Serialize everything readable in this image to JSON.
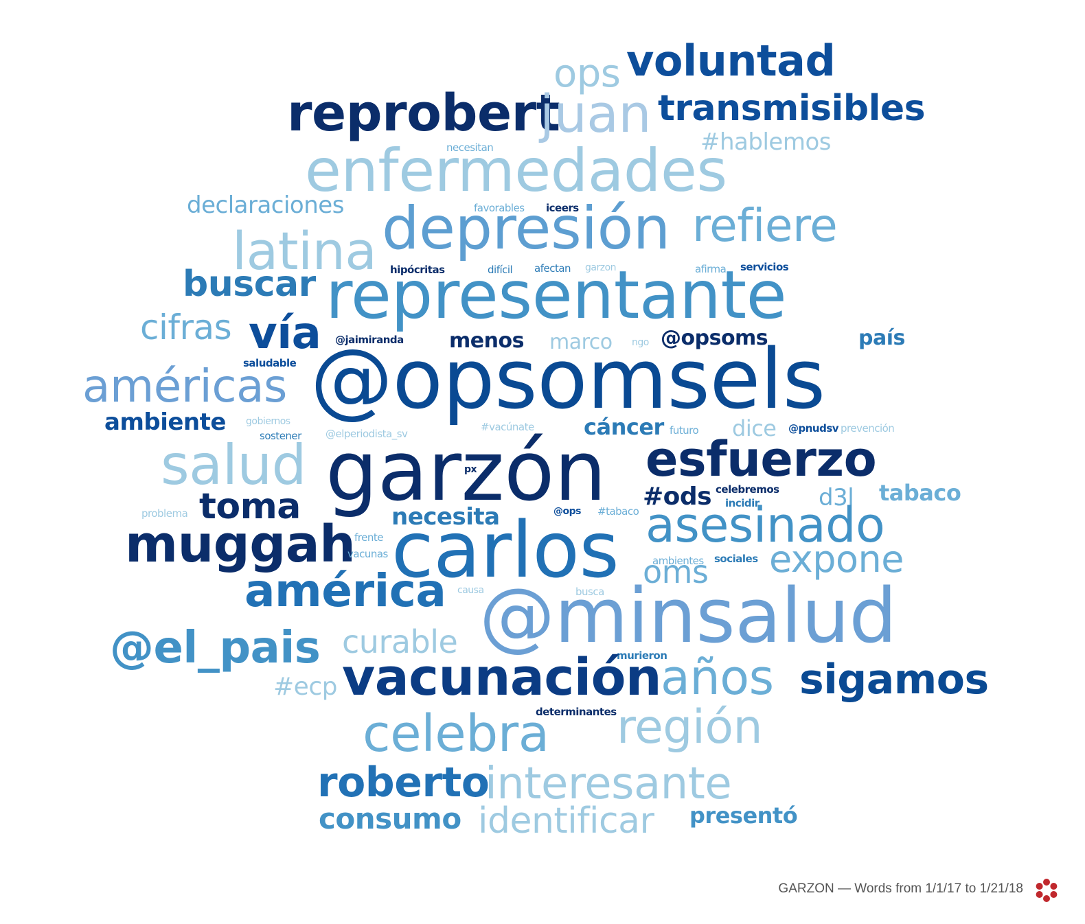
{
  "caption": "GARZON — Words from 1/1/17 to 1/21/18",
  "colors": {
    "navy": "#0b2d6a",
    "dark": "#0a4a93",
    "mid": "#2c7bb6",
    "light": "#6baed6",
    "pale": "#9ecae1"
  },
  "words": [
    {
      "text": "voluntad",
      "size": 62,
      "color": "#0d4e9b"
    },
    {
      "text": "ops",
      "size": 56,
      "color": "#9ecae1"
    },
    {
      "text": "reprobert",
      "size": 74,
      "color": "#0b2d6a"
    },
    {
      "text": "juan",
      "size": 76,
      "color": "#a9c9e4"
    },
    {
      "text": "transmisibles",
      "size": 52,
      "color": "#0d4e9b"
    },
    {
      "text": "#hablemos",
      "size": 34,
      "color": "#9ecae1"
    },
    {
      "text": "necesitan",
      "size": 15,
      "color": "#6baed6"
    },
    {
      "text": "enfermedades",
      "size": 86,
      "color": "#9ecae1"
    },
    {
      "text": "declaraciones",
      "size": 34,
      "color": "#6baed6"
    },
    {
      "text": "favorables",
      "size": 15,
      "color": "#6baed6"
    },
    {
      "text": "iceers",
      "size": 15,
      "color": "#0b2d6a"
    },
    {
      "text": "depresión",
      "size": 86,
      "color": "#5d9ed1"
    },
    {
      "text": "refiere",
      "size": 66,
      "color": "#6baed6"
    },
    {
      "text": "latina",
      "size": 76,
      "color": "#9ecae1"
    },
    {
      "text": "hipócritas",
      "size": 15,
      "color": "#0b2d6a"
    },
    {
      "text": "difícil",
      "size": 15,
      "color": "#2c7bb6"
    },
    {
      "text": "afectan",
      "size": 15,
      "color": "#2c7bb6"
    },
    {
      "text": "garzon",
      "size": 14,
      "color": "#9ecae1"
    },
    {
      "text": "afirma",
      "size": 15,
      "color": "#6baed6"
    },
    {
      "text": "servicios",
      "size": 15,
      "color": "#0d4e9b"
    },
    {
      "text": "buscar",
      "size": 52,
      "color": "#2c7bb6"
    },
    {
      "text": "representante",
      "size": 96,
      "color": "#4292c6"
    },
    {
      "text": "cifras",
      "size": 50,
      "color": "#6baed6"
    },
    {
      "text": "vía",
      "size": 64,
      "color": "#0d4e9b"
    },
    {
      "text": "@jaimiranda",
      "size": 15,
      "color": "#0b2d6a"
    },
    {
      "text": "menos",
      "size": 30,
      "color": "#0b2d6a"
    },
    {
      "text": "marco",
      "size": 30,
      "color": "#9ecae1"
    },
    {
      "text": "ngo",
      "size": 14,
      "color": "#9ecae1"
    },
    {
      "text": "@opsoms",
      "size": 30,
      "color": "#0b2d6a"
    },
    {
      "text": "país",
      "size": 30,
      "color": "#2c7bb6"
    },
    {
      "text": "saludable",
      "size": 15,
      "color": "#0d4e9b"
    },
    {
      "text": "américas",
      "size": 66,
      "color": "#6b9fd4"
    },
    {
      "text": "@opsomsels",
      "size": 120,
      "color": "#0a4a93"
    },
    {
      "text": "ambiente",
      "size": 34,
      "color": "#0d4e9b"
    },
    {
      "text": "gobiernos",
      "size": 14,
      "color": "#9ecae1"
    },
    {
      "text": "#vacúnate",
      "size": 15,
      "color": "#9ecae1"
    },
    {
      "text": "cáncer",
      "size": 32,
      "color": "#2c7bb6"
    },
    {
      "text": "futuro",
      "size": 15,
      "color": "#6baed6"
    },
    {
      "text": "dice",
      "size": 32,
      "color": "#9ecae1"
    },
    {
      "text": "@pnudsv",
      "size": 15,
      "color": "#0d4e9b"
    },
    {
      "text": "prevención",
      "size": 15,
      "color": "#9ecae1"
    },
    {
      "text": "sostener",
      "size": 15,
      "color": "#2c7bb6"
    },
    {
      "text": "@elperiodista_sv",
      "size": 15,
      "color": "#9ecae1"
    },
    {
      "text": "salud",
      "size": 80,
      "color": "#9ecae1"
    },
    {
      "text": "garzón",
      "size": 120,
      "color": "#0b2d6a"
    },
    {
      "text": "esfuerzo",
      "size": 70,
      "color": "#0b2d6a"
    },
    {
      "text": "px",
      "size": 14,
      "color": "#0b2d6a"
    },
    {
      "text": "toma",
      "size": 52,
      "color": "#0b2d6a"
    },
    {
      "text": "#ods",
      "size": 36,
      "color": "#0b2d6a"
    },
    {
      "text": "celebremos",
      "size": 15,
      "color": "#0b2d6a"
    },
    {
      "text": "tabaco",
      "size": 32,
      "color": "#6baed6"
    },
    {
      "text": "d3l",
      "size": 34,
      "color": "#6baed6"
    },
    {
      "text": "incidir",
      "size": 15,
      "color": "#2c7bb6"
    },
    {
      "text": "necesita",
      "size": 34,
      "color": "#2c7bb6"
    },
    {
      "text": "problema",
      "size": 15,
      "color": "#9ecae1"
    },
    {
      "text": "@ops",
      "size": 14,
      "color": "#0d4e9b"
    },
    {
      "text": "#tabaco",
      "size": 15,
      "color": "#6baed6"
    },
    {
      "text": "muggah",
      "size": 74,
      "color": "#0b2d6a"
    },
    {
      "text": "carlos",
      "size": 112,
      "color": "#2171b5"
    },
    {
      "text": "asesinado",
      "size": 70,
      "color": "#4292c6"
    },
    {
      "text": "frente",
      "size": 15,
      "color": "#6baed6"
    },
    {
      "text": "vacunas",
      "size": 15,
      "color": "#6baed6"
    },
    {
      "text": "ambientes",
      "size": 15,
      "color": "#6baed6"
    },
    {
      "text": "sociales",
      "size": 15,
      "color": "#2c7bb6"
    },
    {
      "text": "expone",
      "size": 54,
      "color": "#6baed6"
    },
    {
      "text": "oms",
      "size": 46,
      "color": "#6baed6"
    },
    {
      "text": "causa",
      "size": 14,
      "color": "#9ecae1"
    },
    {
      "text": "busca",
      "size": 15,
      "color": "#9ecae1"
    },
    {
      "text": "américa",
      "size": 66,
      "color": "#2171b5"
    },
    {
      "text": "@minsalud",
      "size": 110,
      "color": "#6b9fd4"
    },
    {
      "text": "@el_pais",
      "size": 64,
      "color": "#4292c6"
    },
    {
      "text": "curable",
      "size": 46,
      "color": "#9ecae1"
    },
    {
      "text": "murieron",
      "size": 15,
      "color": "#2c7bb6"
    },
    {
      "text": "vacunación",
      "size": 74,
      "color": "#0b3c84"
    },
    {
      "text": "años",
      "size": 70,
      "color": "#6baed6"
    },
    {
      "text": "sigamos",
      "size": 60,
      "color": "#0a4a93"
    },
    {
      "text": "#ecp",
      "size": 36,
      "color": "#9ecae1"
    },
    {
      "text": "determinantes",
      "size": 15,
      "color": "#0b2d6a"
    },
    {
      "text": "celebra",
      "size": 74,
      "color": "#6baed6"
    },
    {
      "text": "región",
      "size": 68,
      "color": "#9ecae1"
    },
    {
      "text": "roberto",
      "size": 60,
      "color": "#2171b5"
    },
    {
      "text": "interesante",
      "size": 64,
      "color": "#9ecae1"
    },
    {
      "text": "consumo",
      "size": 42,
      "color": "#4292c6"
    },
    {
      "text": "identificar",
      "size": 52,
      "color": "#9ecae1"
    },
    {
      "text": "presentó",
      "size": 32,
      "color": "#4292c6"
    }
  ]
}
